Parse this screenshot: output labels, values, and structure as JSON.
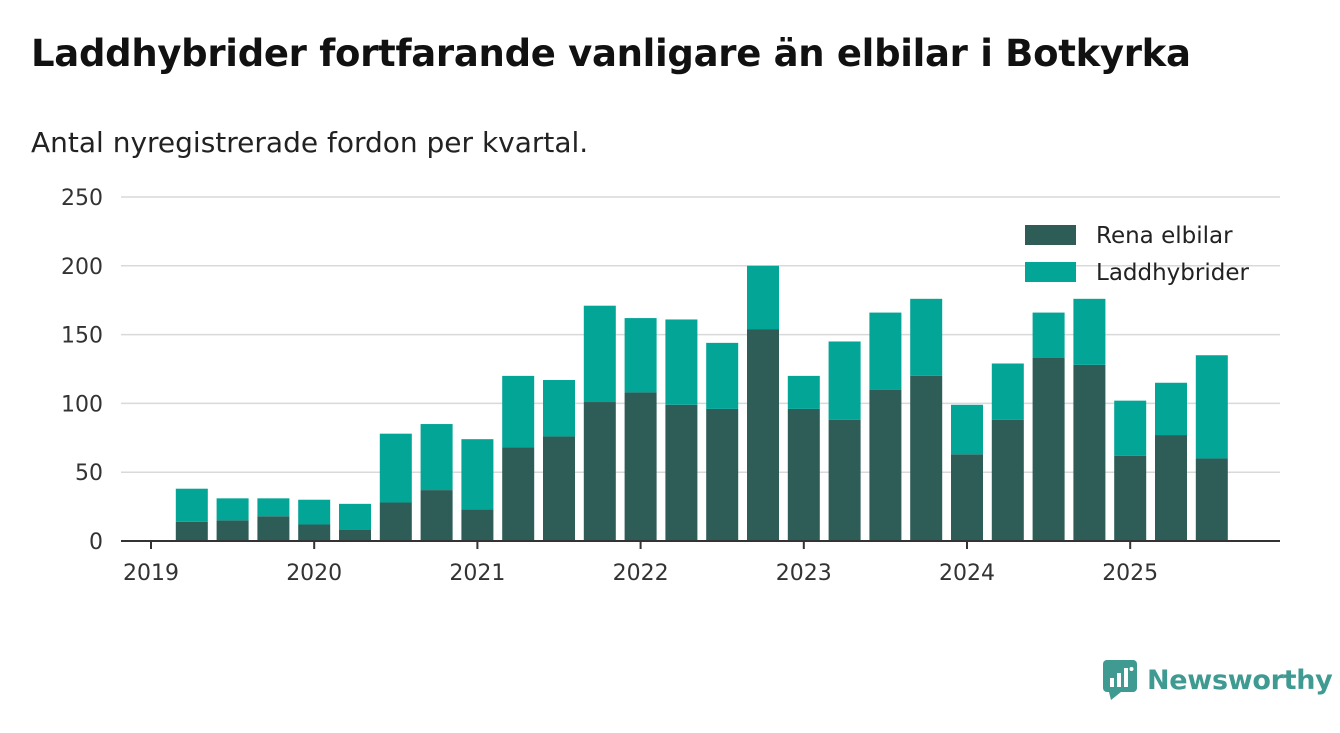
{
  "header": {
    "title": "Laddhybrider fortfarande vanligare än elbilar i Botkyrka",
    "subtitle": "Antal nyregistrerade fordon per kvartal."
  },
  "brand": {
    "name": "Newsworthy",
    "color": "#3f9a92",
    "icon": "bar-chart-speech-bubble-icon"
  },
  "colors": {
    "rena_elbilar": "#2e5d57",
    "laddhybrider": "#03a597",
    "grid": "#d9d9d9",
    "axis": "#333333"
  },
  "chart_data": {
    "type": "bar",
    "stacked": true,
    "title": "Laddhybrider fortfarande vanligare än elbilar i Botkyrka",
    "subtitle": "Antal nyregistrerade fordon per kvartal.",
    "xlabel": "",
    "ylabel": "",
    "ylim": [
      0,
      250
    ],
    "yticks": [
      0,
      50,
      100,
      150,
      200,
      250
    ],
    "xticks": [
      "2019",
      "2020",
      "2021",
      "2022",
      "2023",
      "2024",
      "2025"
    ],
    "legend_position": "top-right",
    "grid": true,
    "categories": [
      "2019 Q1",
      "2019 Q2",
      "2019 Q3",
      "2019 Q4",
      "2020 Q1",
      "2020 Q2",
      "2020 Q3",
      "2020 Q4",
      "2021 Q1",
      "2021 Q2",
      "2021 Q3",
      "2021 Q4",
      "2022 Q1",
      "2022 Q2",
      "2022 Q3",
      "2022 Q4",
      "2023 Q1",
      "2023 Q2",
      "2023 Q3",
      "2023 Q4",
      "2024 Q1",
      "2024 Q2",
      "2024 Q3",
      "2024 Q4",
      "2025 Q1",
      "2025 Q2",
      "2025 Q3"
    ],
    "series": [
      {
        "name": "Rena elbilar",
        "values": [
          0,
          14,
          15,
          18,
          12,
          8,
          28,
          37,
          23,
          68,
          76,
          101,
          108,
          99,
          96,
          154,
          96,
          88,
          110,
          120,
          63,
          88,
          133,
          128,
          62,
          77,
          60
        ]
      },
      {
        "name": "Laddhybrider",
        "values": [
          0,
          24,
          16,
          13,
          18,
          19,
          50,
          48,
          51,
          52,
          41,
          70,
          54,
          62,
          48,
          46,
          24,
          57,
          56,
          56,
          36,
          41,
          33,
          48,
          40,
          38,
          75
        ]
      }
    ]
  }
}
